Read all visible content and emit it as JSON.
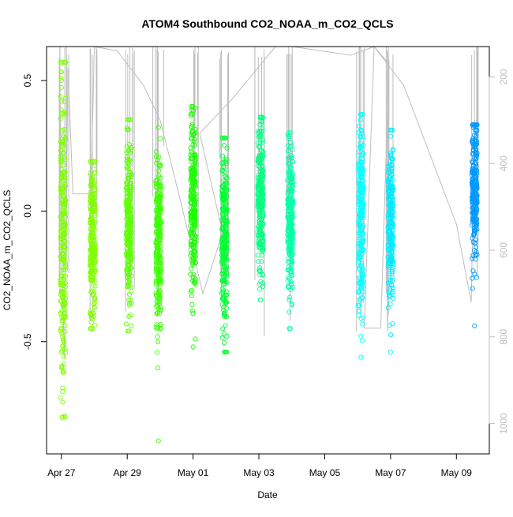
{
  "chart_data": {
    "type": "scatter",
    "title": "ATOM4 Southbound CO2_NOAA_m_CO2_QCLS",
    "xlabel": "Date",
    "ylabel": "CO2_NOAA_m_CO2_QCLS",
    "x_ticks": [
      "Apr 27",
      "Apr 29",
      "May 01",
      "May 03",
      "May 05",
      "May 07",
      "May 09"
    ],
    "x_tick_days": [
      0,
      2,
      4,
      6,
      8,
      10,
      12
    ],
    "xlim_days": [
      -0.45,
      13.0
    ],
    "y_ticks": [
      0.5,
      0.0,
      -0.5
    ],
    "y_tick_labels": [
      "0.5",
      "0.0",
      "-0.5"
    ],
    "ylim": [
      -0.93,
      0.63
    ],
    "y2_label": "",
    "y2_ticks": [
      200,
      400,
      600,
      800,
      1000
    ],
    "y2_tick_labels": [
      "200",
      "400",
      "600",
      "800",
      "1000"
    ],
    "y2lim": [
      1070,
      130
    ],
    "y2_color": "#bebebe",
    "marker": "open circle",
    "grid": false,
    "legend": "none",
    "clusters": [
      {
        "day": 0.05,
        "y_center": -0.08,
        "y_spread": 0.3,
        "y_min": -0.79,
        "y_max": 0.57,
        "color": "#7fff00"
      },
      {
        "day": 0.95,
        "y_center": -0.12,
        "y_spread": 0.15,
        "y_min": -0.45,
        "y_max": 0.19,
        "color": "#80ff00"
      },
      {
        "day": 2.05,
        "y_center": -0.07,
        "y_spread": 0.16,
        "y_min": -0.46,
        "y_max": 0.35,
        "color": "#5cff00"
      },
      {
        "day": 2.95,
        "y_center": -0.12,
        "y_spread": 0.17,
        "y_min": -0.88,
        "y_max": 0.32,
        "color": "#3cff00"
      },
      {
        "day": 4.0,
        "y_center": 0.02,
        "y_spread": 0.17,
        "y_min": -0.52,
        "y_max": 0.4,
        "color": "#1aff00"
      },
      {
        "day": 4.95,
        "y_center": -0.1,
        "y_spread": 0.17,
        "y_min": -0.54,
        "y_max": 0.28,
        "color": "#00ff33"
      },
      {
        "day": 6.05,
        "y_center": 0.07,
        "y_spread": 0.14,
        "y_min": -0.34,
        "y_max": 0.36,
        "color": "#00ff80"
      },
      {
        "day": 6.95,
        "y_center": -0.03,
        "y_spread": 0.14,
        "y_min": -0.45,
        "y_max": 0.3,
        "color": "#00ffa6"
      },
      {
        "day": 9.1,
        "y_center": -0.02,
        "y_spread": 0.18,
        "y_min": -0.56,
        "y_max": 0.37,
        "color": "#00ffff"
      },
      {
        "day": 10.0,
        "y_center": -0.05,
        "y_spread": 0.16,
        "y_min": -0.54,
        "y_max": 0.31,
        "color": "#00eaff"
      },
      {
        "day": 12.55,
        "y_center": 0.09,
        "y_spread": 0.13,
        "y_min": -0.44,
        "y_max": 0.33,
        "color": "#0099ff"
      }
    ],
    "altitude_track": [
      [
        -0.05,
        120
      ],
      [
        0.0,
        600
      ],
      [
        0.1,
        850
      ],
      [
        0.2,
        180
      ],
      [
        0.35,
        470
      ],
      [
        0.9,
        470
      ],
      [
        1.0,
        120
      ],
      [
        1.7,
        140
      ],
      [
        2.5,
        220
      ],
      [
        3.0,
        300
      ],
      [
        3.5,
        450
      ],
      [
        4.3,
        700
      ],
      [
        4.9,
        560
      ],
      [
        4.2,
        330
      ],
      [
        5.2,
        250
      ],
      [
        6.5,
        130
      ],
      [
        6.8,
        100
      ],
      [
        7.0,
        110
      ],
      [
        8.8,
        150
      ],
      [
        9.5,
        120
      ],
      [
        9.95,
        170
      ],
      [
        9.7,
        780
      ],
      [
        9.2,
        780
      ],
      [
        9.5,
        120
      ],
      [
        10.4,
        220
      ],
      [
        12.0,
        540
      ],
      [
        12.45,
        720
      ],
      [
        12.55,
        300
      ]
    ]
  }
}
